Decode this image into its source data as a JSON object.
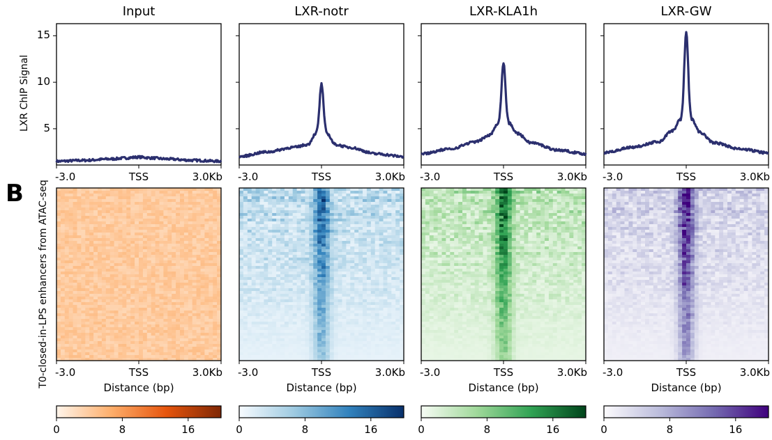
{
  "panel_letter": "B",
  "profile_ylabel": "LXR ChIP Signal",
  "heatmap_ylabel": "T0-closed-in-LPS enhancers from ATAC-seq",
  "xlabel": "Distance (bp)",
  "x_ticks": [
    "-3.0",
    "TSS",
    "3.0Kb"
  ],
  "y_ticks": [
    "5",
    "10",
    "15"
  ],
  "colorbar_ticks": [
    "0",
    "8",
    "16"
  ],
  "chart_data": [
    {
      "type": "line",
      "title": "Input",
      "color": "#2b2f6e",
      "x": [
        -3000,
        -2000,
        -1000,
        -500,
        0,
        500,
        1000,
        2000,
        3000
      ],
      "y": [
        1.5,
        1.6,
        1.75,
        1.85,
        1.95,
        1.85,
        1.75,
        1.6,
        1.5
      ],
      "ylim": [
        1.1,
        16.3
      ],
      "heatmap_cmap": "Oranges",
      "cmap_colors": [
        "#fff5eb",
        "#fdae6b",
        "#e6550d",
        "#7f2704"
      ],
      "colorbar_range": [
        0,
        20
      ]
    },
    {
      "type": "line",
      "title": "LXR-notr",
      "color": "#2b2f6e",
      "x": [
        -3000,
        -2000,
        -1000,
        -500,
        -200,
        0,
        200,
        500,
        1000,
        2000,
        3000
      ],
      "y": [
        2.0,
        2.5,
        3.0,
        3.3,
        4.5,
        9.8,
        4.5,
        3.3,
        3.0,
        2.3,
        2.0
      ],
      "ylim": [
        1.1,
        16.3
      ],
      "heatmap_cmap": "Blues",
      "cmap_colors": [
        "#f7fbff",
        "#9ecae1",
        "#3182bd",
        "#08306b"
      ],
      "colorbar_range": [
        0,
        20
      ]
    },
    {
      "type": "line",
      "title": "LXR-KLA1h",
      "color": "#2b2f6e",
      "x": [
        -3000,
        -2000,
        -1000,
        -500,
        -200,
        0,
        200,
        500,
        1000,
        2000,
        3000
      ],
      "y": [
        2.3,
        2.8,
        3.6,
        4.3,
        5.6,
        12.1,
        5.6,
        4.5,
        3.5,
        2.7,
        2.3
      ],
      "ylim": [
        1.1,
        16.3
      ],
      "heatmap_cmap": "Greens",
      "cmap_colors": [
        "#f7fcf5",
        "#a1d99b",
        "#31a354",
        "#00441b"
      ],
      "colorbar_range": [
        0,
        20
      ]
    },
    {
      "type": "line",
      "title": "LXR-GW",
      "color": "#2b2f6e",
      "x": [
        -3000,
        -2000,
        -1000,
        -500,
        -200,
        0,
        200,
        500,
        1000,
        2000,
        3000
      ],
      "y": [
        2.4,
        3.0,
        3.6,
        4.8,
        6.0,
        15.4,
        6.0,
        4.6,
        3.5,
        2.8,
        2.4
      ],
      "ylim": [
        1.1,
        16.3
      ],
      "heatmap_cmap": "Purples",
      "cmap_colors": [
        "#fcfbfd",
        "#bcbddc",
        "#756bb1",
        "#3f007d"
      ],
      "colorbar_range": [
        0,
        20
      ]
    }
  ]
}
